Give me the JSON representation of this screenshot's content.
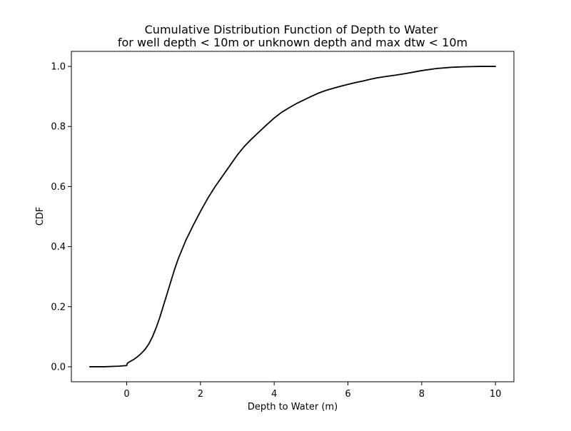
{
  "chart_data": {
    "type": "line",
    "title": "Cumulative Distribution Function of Depth to Water",
    "subtitle": "for well depth < 10m or unknown depth and max dtw < 10m",
    "xlabel": "Depth to Water (m)",
    "ylabel": "CDF",
    "xlim": [
      -1.5,
      10.5
    ],
    "ylim": [
      -0.05,
      1.05
    ],
    "x_ticks": [
      0,
      2,
      4,
      6,
      8,
      10
    ],
    "x_tick_labels": [
      "0",
      "2",
      "4",
      "6",
      "8",
      "10"
    ],
    "y_ticks": [
      0.0,
      0.2,
      0.4,
      0.6,
      0.8,
      1.0
    ],
    "y_tick_labels": [
      "0.0",
      "0.2",
      "0.4",
      "0.6",
      "0.8",
      "1.0"
    ],
    "grid": false,
    "line_color": "#000000",
    "series": [
      {
        "x": [
          -1.0,
          -0.8,
          -0.6,
          -0.4,
          -0.2,
          0.0,
          0.02,
          0.1,
          0.2,
          0.3,
          0.4,
          0.5,
          0.6,
          0.7,
          0.8,
          0.9,
          1.0,
          1.1,
          1.2,
          1.3,
          1.4,
          1.5,
          1.6,
          1.8,
          2.0,
          2.2,
          2.4,
          2.6,
          2.8,
          3.0,
          3.2,
          3.4,
          3.6,
          3.8,
          4.0,
          4.2,
          4.4,
          4.6,
          4.8,
          5.0,
          5.2,
          5.4,
          5.6,
          5.8,
          6.0,
          6.2,
          6.4,
          6.6,
          6.8,
          7.0,
          7.3,
          7.6,
          8.0,
          8.4,
          8.8,
          9.2,
          9.6,
          10.0
        ],
        "y": [
          0.0,
          0.0,
          0.0,
          0.001,
          0.002,
          0.004,
          0.012,
          0.018,
          0.025,
          0.034,
          0.045,
          0.058,
          0.076,
          0.1,
          0.13,
          0.165,
          0.205,
          0.245,
          0.285,
          0.325,
          0.36,
          0.39,
          0.42,
          0.47,
          0.517,
          0.561,
          0.6,
          0.635,
          0.67,
          0.705,
          0.735,
          0.76,
          0.783,
          0.806,
          0.828,
          0.847,
          0.862,
          0.876,
          0.888,
          0.9,
          0.911,
          0.92,
          0.927,
          0.934,
          0.94,
          0.946,
          0.951,
          0.957,
          0.962,
          0.966,
          0.971,
          0.977,
          0.986,
          0.993,
          0.997,
          0.999,
          1.0,
          1.0
        ]
      }
    ]
  }
}
